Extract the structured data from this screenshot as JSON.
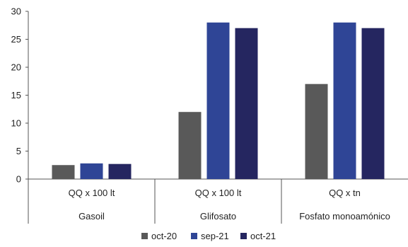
{
  "chart_data": {
    "type": "bar",
    "title": "",
    "xlabel": "",
    "ylabel": "",
    "ylim": [
      0,
      30
    ],
    "yticks": [
      0,
      5,
      10,
      15,
      20,
      25,
      30
    ],
    "grid": false,
    "legend_position": "bottom",
    "categories": [
      {
        "unit": "QQ x 100 lt",
        "name": "Gasoil"
      },
      {
        "unit": "QQ x 100 lt",
        "name": "Glifosato"
      },
      {
        "unit": "QQ x tn",
        "name": "Fosfato monoamónico"
      }
    ],
    "series": [
      {
        "name": "oct-20",
        "color": "#595959",
        "values": [
          2.5,
          12,
          17
        ]
      },
      {
        "name": "sep-21",
        "color": "#2f4596",
        "values": [
          2.8,
          28,
          28
        ]
      },
      {
        "name": "oct-21",
        "color": "#252660",
        "values": [
          2.7,
          27,
          27
        ]
      }
    ]
  }
}
